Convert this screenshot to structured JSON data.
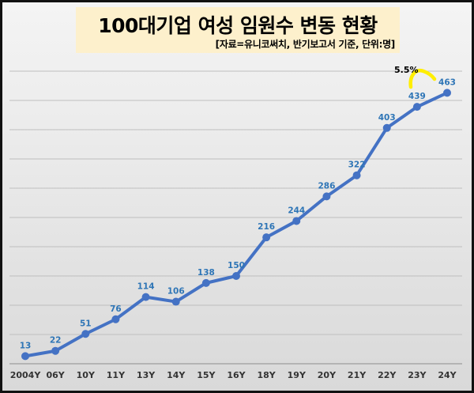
{
  "header": {
    "title": "100대기업 여성 임원수 변동 현황",
    "subtitle": "[자료=유니코써치, 반기보고서 기준, 단위:명]"
  },
  "annotation": {
    "growth_label": "5.5%",
    "arc_color": "#ffee00"
  },
  "colors": {
    "line": "#4472c4",
    "data_label": "#2e75b6",
    "title_bg": "#fdf0cc",
    "gridline": "#bfbfbf"
  },
  "chart_data": {
    "type": "line",
    "title": "100대기업 여성 임원수 변동 현황",
    "subtitle": "[자료=유니코써치, 반기보고서 기준, 단위:명]",
    "xlabel": "",
    "ylabel": "",
    "ylim": [
      0,
      500
    ],
    "grid": true,
    "legend": null,
    "categories": [
      "2004Y",
      "06Y",
      "10Y",
      "11Y",
      "13Y",
      "14Y",
      "15Y",
      "16Y",
      "18Y",
      "19Y",
      "20Y",
      "21Y",
      "22Y",
      "23Y",
      "24Y"
    ],
    "series": [
      {
        "name": "여성 임원수",
        "values": [
          13,
          22,
          51,
          76,
          114,
          106,
          138,
          150,
          216,
          244,
          286,
          322,
          403,
          439,
          463
        ]
      }
    ],
    "annotations": [
      {
        "text": "5.5%",
        "from": "23Y",
        "to": "24Y",
        "note": "year-over-year increase arrow"
      }
    ]
  }
}
